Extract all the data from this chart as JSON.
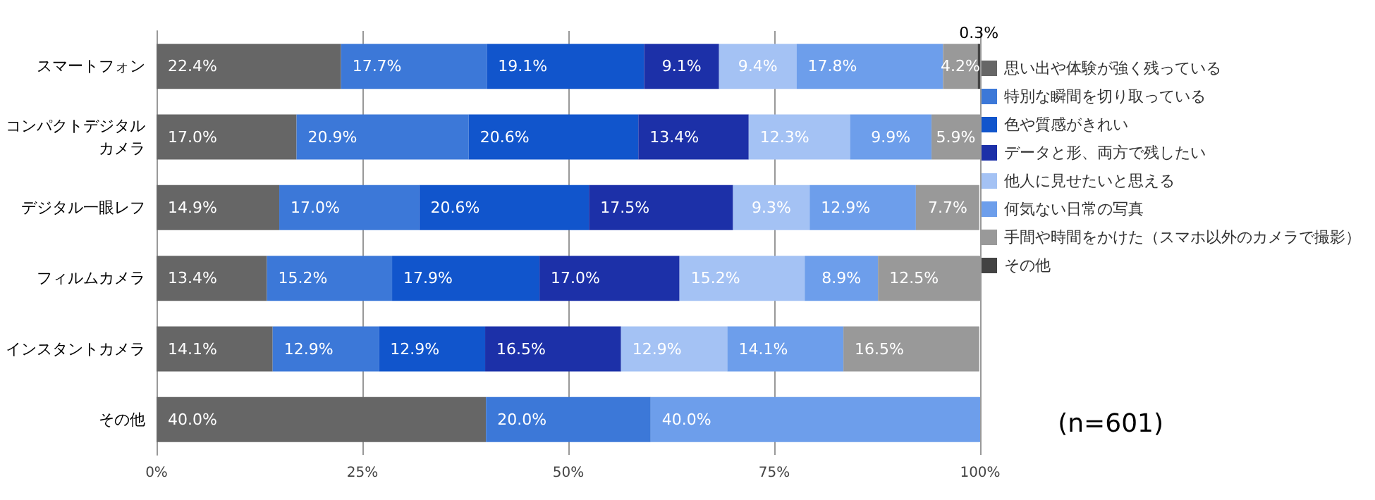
{
  "chart_data": {
    "type": "bar",
    "orientation": "horizontal",
    "stacked": true,
    "categories": [
      "スマートフォン",
      "コンパクトデジタルカメラ",
      "デジタル一眼レフ",
      "フィルムカメラ",
      "インスタントカメラ",
      "その他"
    ],
    "series": [
      {
        "name": "思い出や体験が強く残っている",
        "color": "#666666",
        "values": [
          22.4,
          17.0,
          14.9,
          13.4,
          14.1,
          40.0
        ],
        "value_labels": [
          "22.4%",
          "17.0%",
          "14.9%",
          "13.4%",
          "14.1%",
          "40.0%"
        ]
      },
      {
        "name": "特別な瞬間を切り取っている",
        "color": "#3c78d8",
        "values": [
          17.7,
          20.9,
          17.0,
          15.2,
          12.9,
          20.0
        ],
        "value_labels": [
          "17.7%",
          "20.9%",
          "17.0%",
          "15.2%",
          "12.9%",
          "20.0%"
        ]
      },
      {
        "name": "色や質感がきれい",
        "color": "#1155cc",
        "values": [
          19.1,
          20.6,
          20.6,
          17.9,
          12.9,
          null
        ],
        "value_labels": [
          "19.1%",
          "20.6%",
          "20.6%",
          "17.9%",
          "12.9%",
          null
        ]
      },
      {
        "name": "データと形、両方で残したい",
        "color": "#1c30a8",
        "values": [
          9.1,
          13.4,
          17.5,
          17.0,
          16.5,
          null
        ],
        "value_labels": [
          "9.1%",
          "13.4%",
          "17.5%",
          "17.0%",
          "16.5%",
          null
        ]
      },
      {
        "name": "他人に見せたいと思える",
        "color": "#a4c2f4",
        "values": [
          9.4,
          12.3,
          9.3,
          15.2,
          12.9,
          null
        ],
        "value_labels": [
          "9.4%",
          "12.3%",
          "9.3%",
          "15.2%",
          "12.9%",
          null
        ]
      },
      {
        "name": "何気ない日常の写真",
        "color": "#6d9eeb",
        "values": [
          17.8,
          9.9,
          12.9,
          8.9,
          14.1,
          40.0
        ],
        "value_labels": [
          "17.8%",
          "9.9%",
          "12.9%",
          "8.9%",
          "14.1%",
          "40.0%"
        ]
      },
      {
        "name": "手間や時間をかけた（スマホ以外のカメラで撮影）",
        "color": "#999999",
        "values": [
          4.2,
          5.9,
          7.7,
          12.5,
          16.5,
          null
        ],
        "value_labels": [
          "4.2%",
          "5.9%",
          "7.7%",
          "12.5%",
          "16.5%",
          null
        ]
      },
      {
        "name": "その他",
        "color": "#434343",
        "values": [
          0.3,
          null,
          null,
          null,
          null,
          null
        ],
        "value_labels": [
          "0.3%",
          null,
          null,
          null,
          null,
          null
        ]
      }
    ],
    "xlim": [
      0,
      100
    ],
    "xticks": [
      {
        "value": 0,
        "label": "0%"
      },
      {
        "value": 25,
        "label": "25%"
      },
      {
        "value": 50,
        "label": "50%"
      },
      {
        "value": 75,
        "label": "75%"
      },
      {
        "value": 100,
        "label": "100%"
      }
    ],
    "grid": "x",
    "legend": "right",
    "annotations": [
      "(n=601)"
    ]
  }
}
